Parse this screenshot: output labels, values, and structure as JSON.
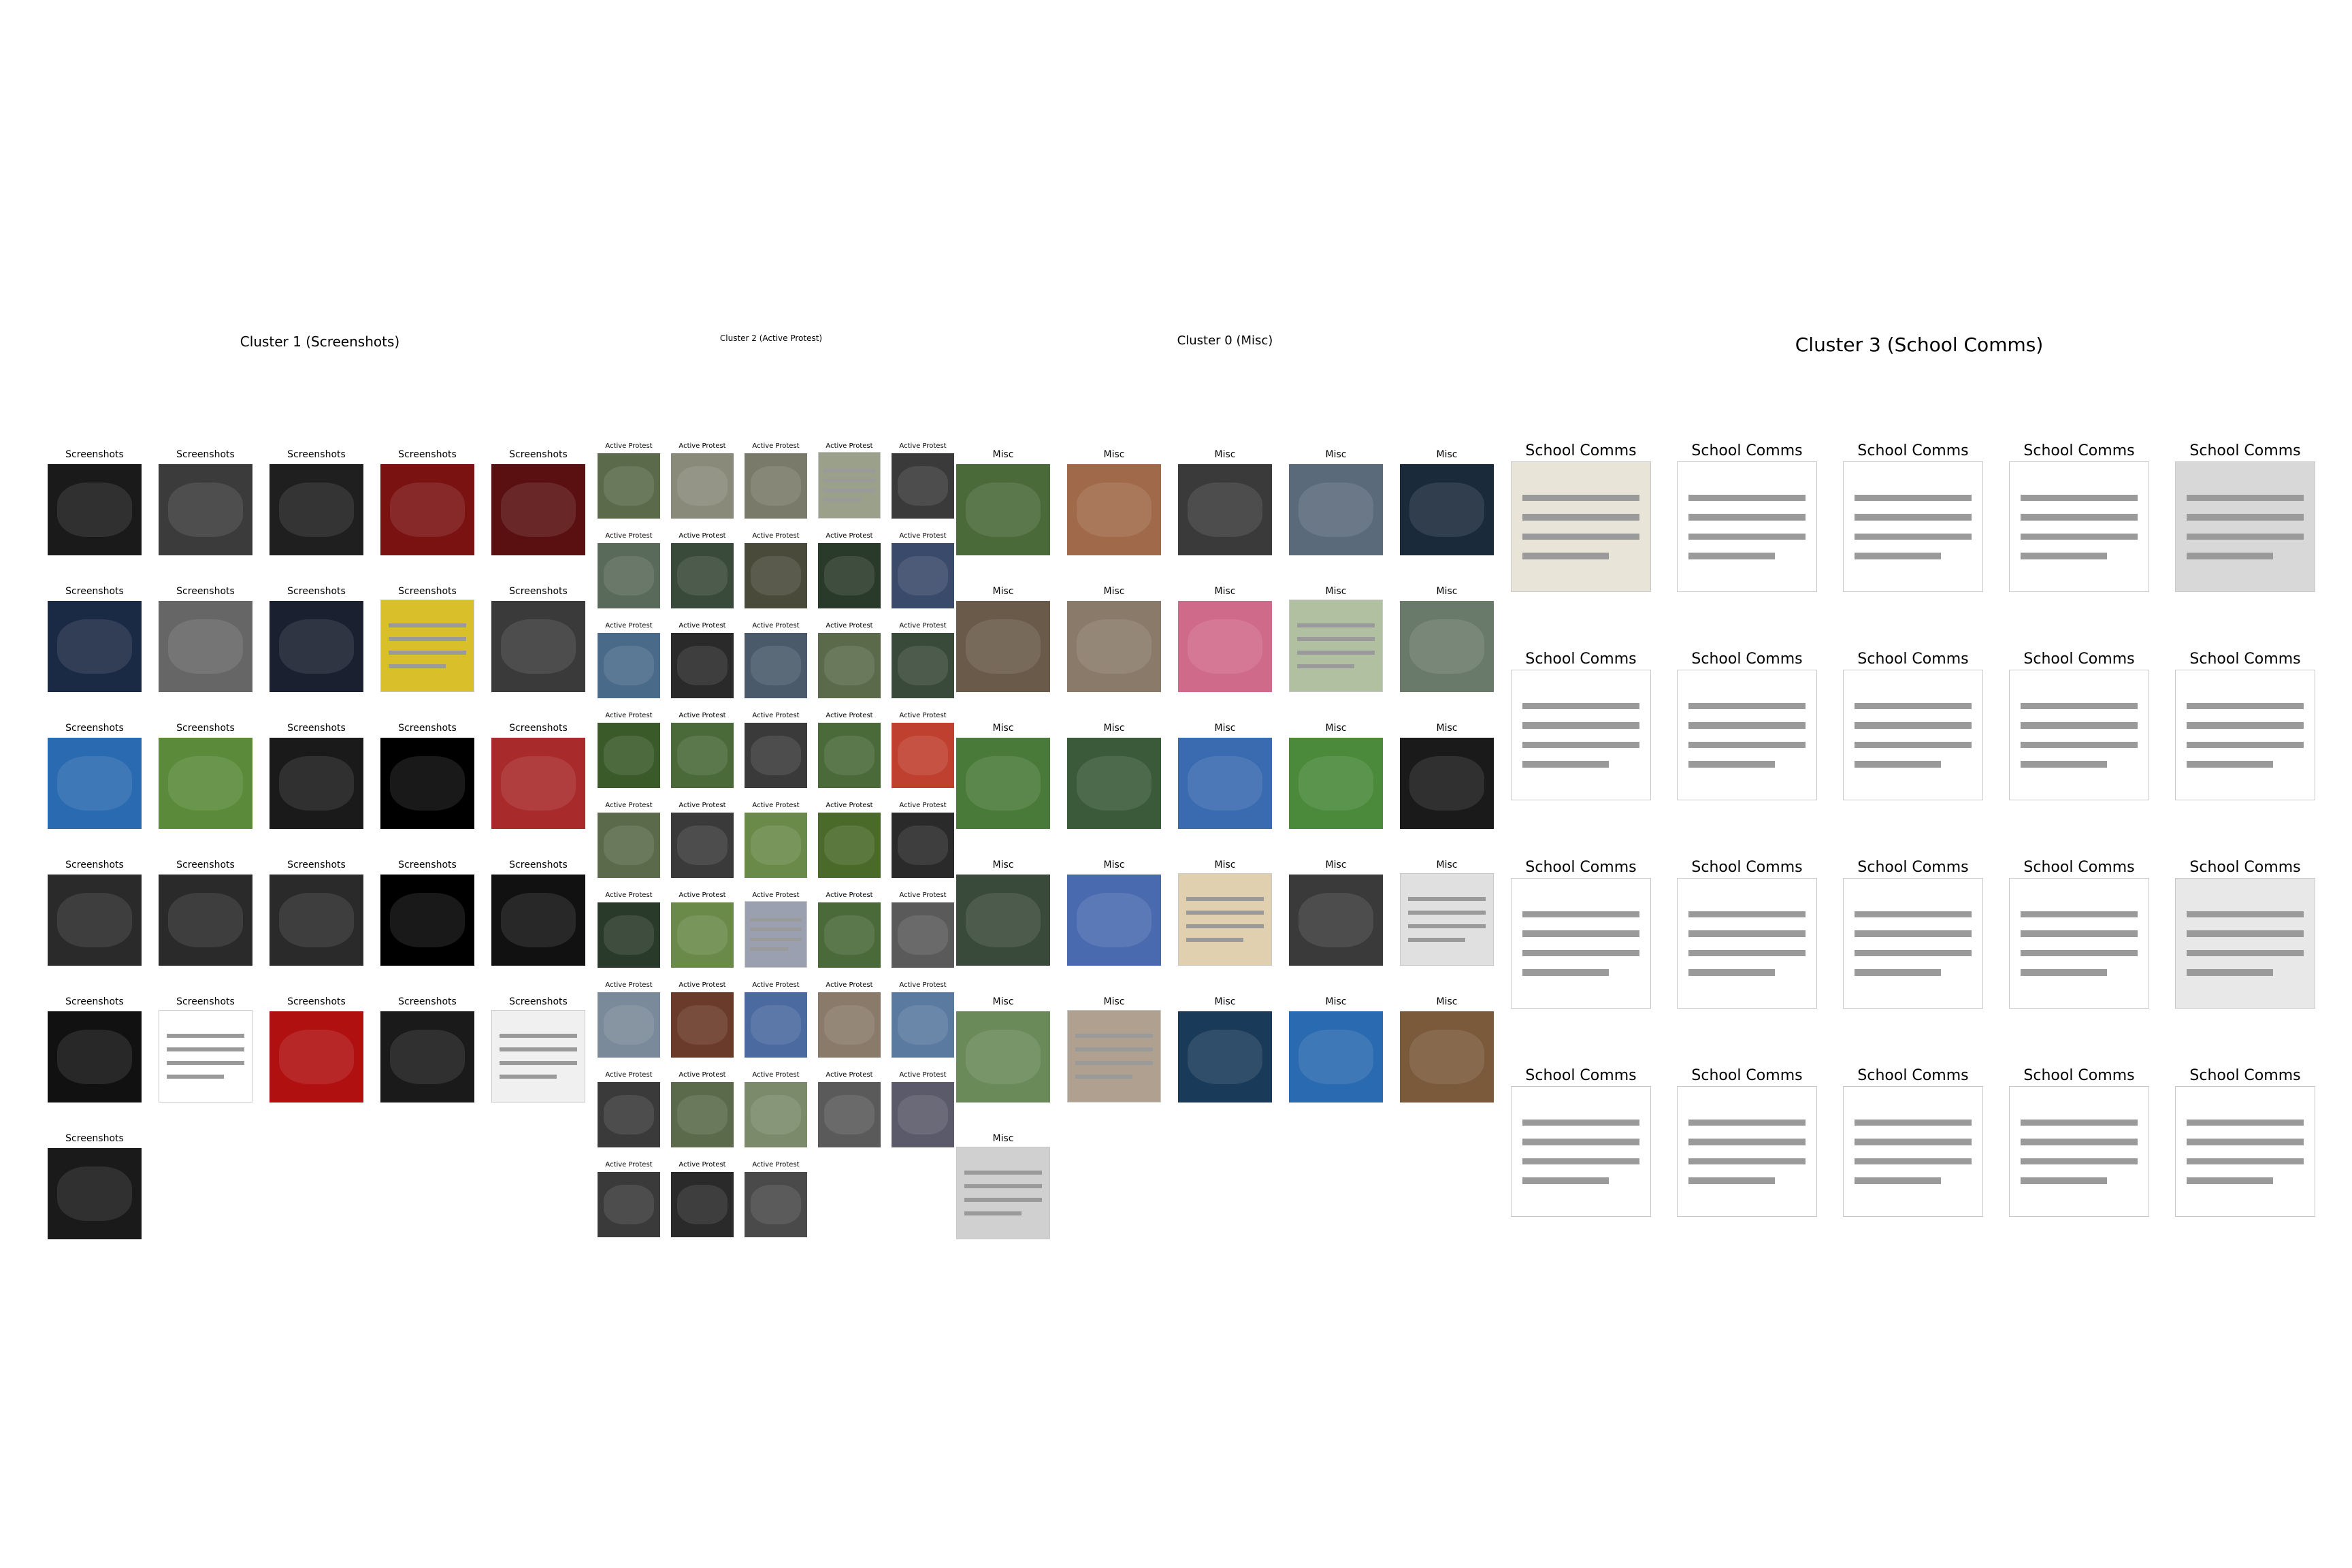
{
  "clusters": [
    {
      "id": "c1",
      "title": "Cluster 1 (Screenshots)",
      "label": "Screenshots",
      "count": 26,
      "cols": 5,
      "thumb_colors": [
        "#1a1a1a",
        "#3b3b3b",
        "#1f1f1f",
        "#7a1212",
        "#5a1010",
        "#1b2a44",
        "#666666",
        "#1a2030",
        "#d9c02a",
        "#3a3a3a",
        "#2a6ab0",
        "#5a8a3a",
        "#1a1a1a",
        "#000000",
        "#a82a2a",
        "#2a2a2a",
        "#2a2a2a",
        "#2a2a2a",
        "#000000",
        "#111111",
        "#111111",
        "#ffffff",
        "#b01010",
        "#1a1a1a",
        "#f0f0f0",
        "#1a1a1a"
      ]
    },
    {
      "id": "c2",
      "title": "Cluster 2 (Active Protest)",
      "label": "Active Protest",
      "count": 43,
      "cols": 5,
      "thumb_colors": [
        "#5a6a4a",
        "#8a8a7a",
        "#7a7a6a",
        "#9aa08a",
        "#3a3a3a",
        "#5a6a5a",
        "#3a4a3a",
        "#4a4a3a",
        "#2a3a2a",
        "#3a4a6a",
        "#4a6a8a",
        "#2a2a2a",
        "#4a5a6a",
        "#5a6a4a",
        "#3a4a3a",
        "#3a5a2a",
        "#4a6a3a",
        "#3a3a3a",
        "#4a6a3a",
        "#c04030",
        "#5a6a4a",
        "#3a3a3a",
        "#6a8a4a",
        "#4a6a2a",
        "#2a2a2a",
        "#2a3a2a",
        "#6a8a4a",
        "#9aa0b0",
        "#4a6a3a",
        "#5a5a5a",
        "#7a8a9a",
        "#6a3a2a",
        "#4a6aa0",
        "#8a7a6a",
        "#5a7aa0",
        "#3a3a3a",
        "#5a6a4a",
        "#7a8a6a",
        "#5a5a5a",
        "#5a5a6a",
        "#3a3a3a",
        "#2a2a2a",
        "#4a4a4a"
      ]
    },
    {
      "id": "c0",
      "title": "Cluster 0 (Misc)",
      "label": "Misc",
      "count": 26,
      "cols": 5,
      "thumb_colors": [
        "#4a6a3a",
        "#a06a4a",
        "#3a3a3a",
        "#5a6a7a",
        "#1a2a3a",
        "#6a5a4a",
        "#8a7a6a",
        "#d06a8a",
        "#b0c0a0",
        "#6a7a6a",
        "#4a7a3a",
        "#3a5a3a",
        "#3a6ab0",
        "#4a8a3a",
        "#1a1a1a",
        "#3a4a3a",
        "#4a6ab0",
        "#e0d0b0",
        "#3a3a3a",
        "#e0e0e0",
        "#6a8a5a",
        "#b0a090",
        "#1a3a5a",
        "#2a6ab0",
        "#7a5a3a",
        "#d0d0d0"
      ]
    },
    {
      "id": "c3",
      "title": "Cluster 3 (School Comms)",
      "label": "School Comms",
      "count": 20,
      "cols": 5,
      "thumb_colors": [
        "#e8e4d8",
        "#ffffff",
        "#ffffff",
        "#ffffff",
        "#d8d8d8",
        "#ffffff",
        "#ffffff",
        "#ffffff",
        "#ffffff",
        "#ffffff",
        "#ffffff",
        "#ffffff",
        "#ffffff",
        "#ffffff",
        "#e8e8e8",
        "#ffffff",
        "#ffffff",
        "#ffffff",
        "#ffffff",
        "#ffffff"
      ]
    }
  ]
}
